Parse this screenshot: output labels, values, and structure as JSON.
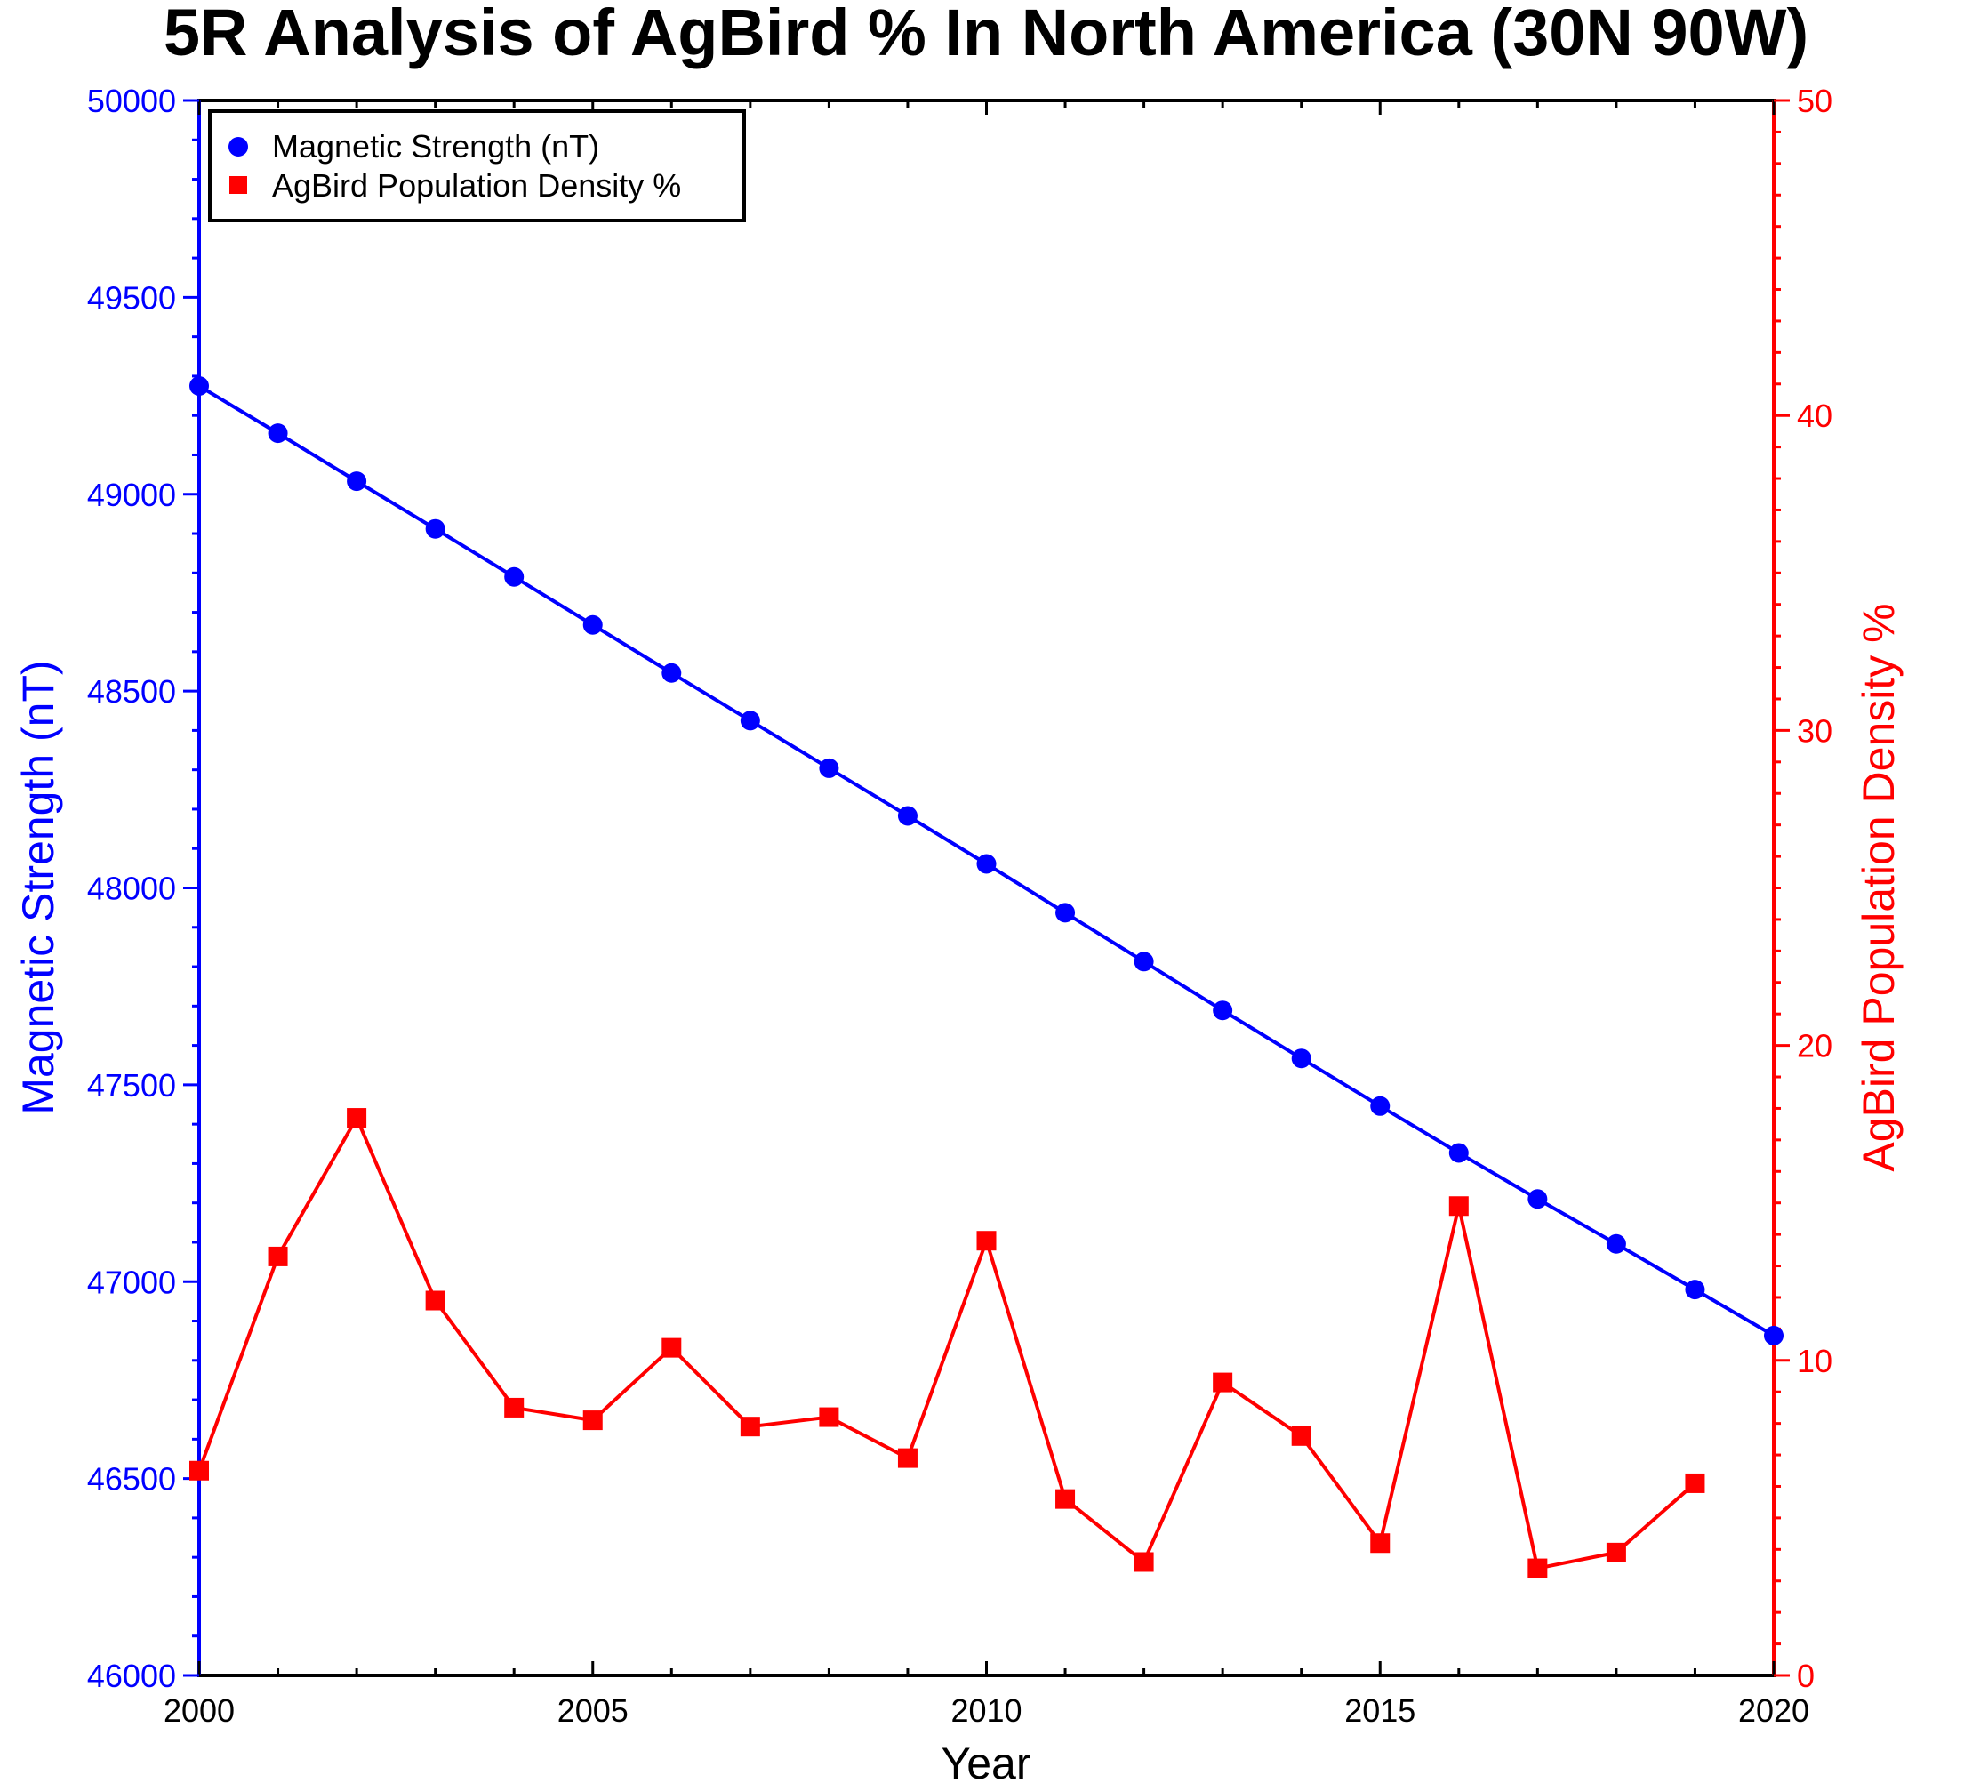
{
  "chart_data": {
    "type": "line",
    "title": "5R Analysis of AgBird % In North America (30N 90W)",
    "xlabel": "Year",
    "ylabel_left": "Magnetic Strength (nT)",
    "ylabel_right": "AgBird Population Density %",
    "xlim": [
      2000,
      2020
    ],
    "ylim_left": [
      46000,
      50000
    ],
    "ylim_right": [
      0,
      50
    ],
    "x_ticks": [
      "2000",
      "2005",
      "2010",
      "2015",
      "2020"
    ],
    "y_left_ticks": [
      "46000",
      "46500",
      "47000",
      "47500",
      "48000",
      "48500",
      "49000",
      "49500",
      "50000"
    ],
    "y_right_ticks": [
      "0",
      "10",
      "20",
      "30",
      "40",
      "50"
    ],
    "legend_position": "top-left",
    "grid": false,
    "colors": {
      "left_axis": "#0000ff",
      "right_axis": "#ff0000",
      "frame": "#000000"
    },
    "series": [
      {
        "name": "Magnetic Strength (nT)",
        "axis": "left",
        "marker": "circle",
        "color": "#0000ff",
        "x": [
          2000,
          2001,
          2002,
          2003,
          2004,
          2005,
          2006,
          2007,
          2008,
          2009,
          2010,
          2011,
          2012,
          2013,
          2014,
          2015,
          2016,
          2017,
          2018,
          2019,
          2020
        ],
        "values": [
          49275,
          49155,
          49033,
          48912,
          48790,
          48668,
          48546,
          48425,
          48304,
          48183,
          48061,
          47937,
          47813,
          47689,
          47567,
          47446,
          47327,
          47210,
          47096,
          46980,
          46863
        ]
      },
      {
        "name": "AgBird Population Density %",
        "axis": "right",
        "marker": "square",
        "color": "#ff0000",
        "x": [
          2000,
          2001,
          2002,
          2003,
          2004,
          2005,
          2006,
          2007,
          2008,
          2009,
          2010,
          2011,
          2012,
          2013,
          2014,
          2015,
          2016,
          2017,
          2018,
          2019
        ],
        "values": [
          6.5,
          13.3,
          17.7,
          11.9,
          8.5,
          8.1,
          10.4,
          7.9,
          8.2,
          6.9,
          13.8,
          5.6,
          3.6,
          9.3,
          7.6,
          4.2,
          14.9,
          3.4,
          3.9,
          6.1
        ]
      }
    ]
  }
}
